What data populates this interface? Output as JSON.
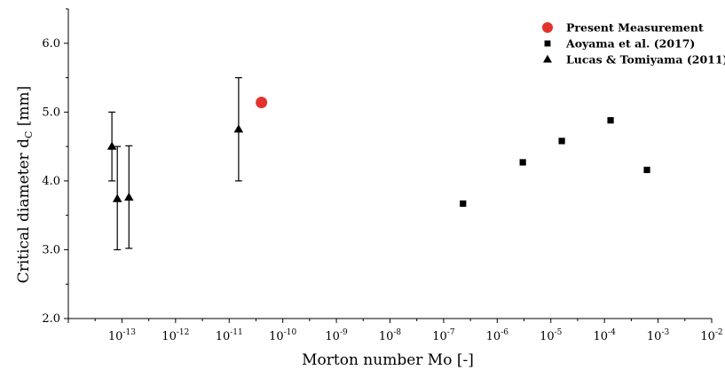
{
  "chart_data": {
    "type": "scatter",
    "title": "",
    "xlabel": {
      "main": "Morton number Mo [-]"
    },
    "ylabel": {
      "main": "Critical diameter d",
      "subscript": "C",
      "suffix": " [mm]"
    },
    "xscale": "log",
    "xlim": [
      1e-14,
      0.01
    ],
    "ylim": [
      2.0,
      6.5
    ],
    "x_tick_exponents": [
      -13,
      -12,
      -11,
      -10,
      -9,
      -8,
      -7,
      -6,
      -5,
      -4,
      -3,
      -2
    ],
    "x_tick_base": "10",
    "y_ticks": [
      "2.0",
      "3.0",
      "4.0",
      "5.0",
      "6.0"
    ],
    "grid": false,
    "legend_position": "top-right",
    "series": [
      {
        "name": "Present Measurement",
        "marker": "circle",
        "color": "#e3322b",
        "points": [
          {
            "x": 4e-11,
            "y": 5.14
          }
        ]
      },
      {
        "name": "Aoyama et al. (2017)",
        "marker": "square",
        "color": "#000000",
        "points": [
          {
            "x": 2.3e-07,
            "y": 3.67
          },
          {
            "x": 3e-06,
            "y": 4.27
          },
          {
            "x": 1.6e-05,
            "y": 4.58
          },
          {
            "x": 0.00013,
            "y": 4.88
          },
          {
            "x": 0.00062,
            "y": 4.16
          }
        ]
      },
      {
        "name": "Lucas & Tomiyama (2011)",
        "marker": "triangle",
        "color": "#000000",
        "points": [
          {
            "x": 6.5e-14,
            "y": 4.5,
            "ylow": 4.0,
            "yhigh": 5.0
          },
          {
            "x": 8.2e-14,
            "y": 3.74,
            "ylow": 3.0,
            "yhigh": 4.5
          },
          {
            "x": 1.35e-13,
            "y": 3.76,
            "ylow": 3.02,
            "yhigh": 4.51
          },
          {
            "x": 1.5e-11,
            "y": 4.75,
            "ylow": 4.0,
            "yhigh": 5.5
          }
        ]
      }
    ]
  }
}
